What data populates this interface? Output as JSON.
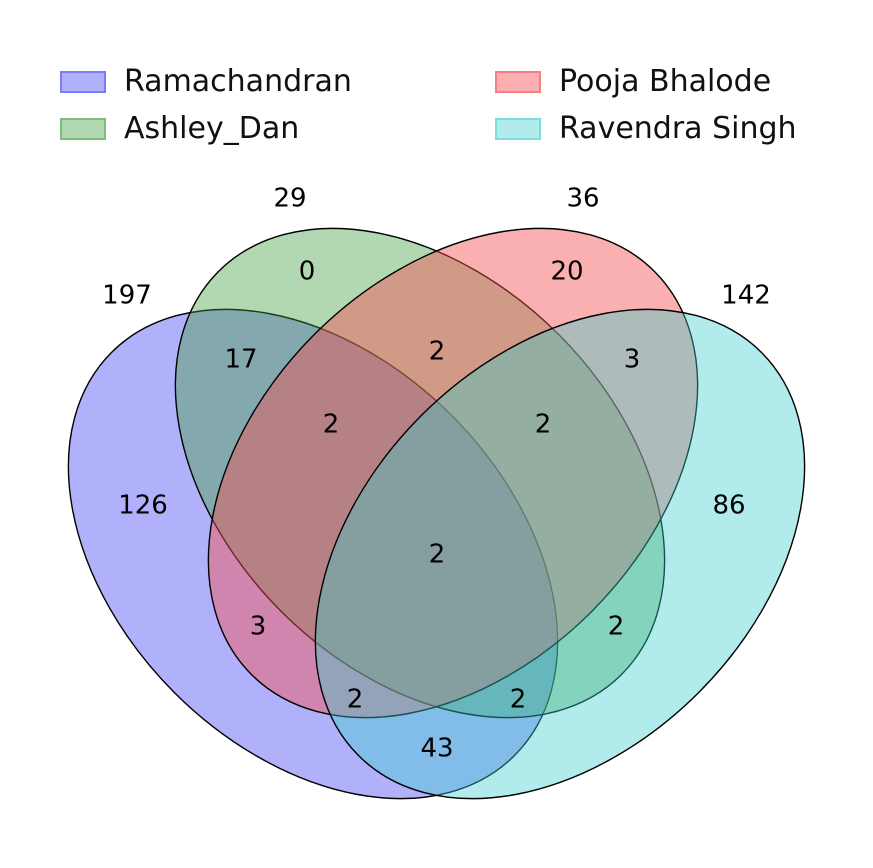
{
  "sets": [
    {
      "name": "Ramachandran",
      "total": "197",
      "color": "#3b3bf5",
      "fill_opacity": 0.4
    },
    {
      "name": "Ashley_Dan",
      "total": "29",
      "color": "#3f9d3f",
      "fill_opacity": 0.4
    },
    {
      "name": "Pooja Bhalode",
      "total": "36",
      "color": "#f55050",
      "fill_opacity": 0.45
    },
    {
      "name": "Ravendra Singh",
      "total": "142",
      "color": "#3ccccc",
      "fill_opacity": 0.4
    }
  ],
  "regions": {
    "R_only": "126",
    "A_only": "0",
    "P_only": "20",
    "S_only": "86",
    "R_A": "17",
    "A_P": "2",
    "P_S": "3",
    "R_P": "3",
    "A_S": "2",
    "R_S": "43",
    "R_A_P": "2",
    "A_P_S": "2",
    "R_A_S": "2",
    "R_P_S": "2",
    "all": "2"
  }
}
